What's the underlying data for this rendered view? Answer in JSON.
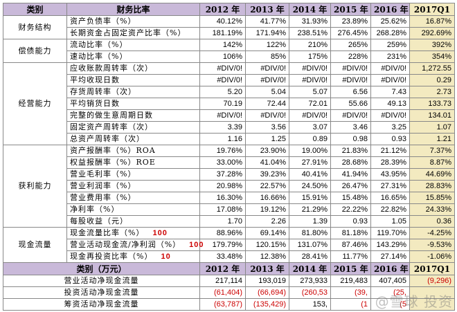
{
  "ratio_table": {
    "headers": [
      "类别",
      "财务比率",
      "2012 年",
      "2013 年",
      "2014 年",
      "2015 年",
      "2016 年",
      "2017Q1"
    ],
    "groups": [
      {
        "category": "财务结构",
        "rows": [
          {
            "name": "资产负债率（%）",
            "mark": "",
            "values": [
              "40.12%",
              "41.77%",
              "31.93%",
              "23.89%",
              "25.62%",
              "16.87%"
            ]
          },
          {
            "name": "长期资金占固定资产比率（%）",
            "mark": "",
            "values": [
              "181.19%",
              "171.94%",
              "238.51%",
              "276.45%",
              "268.28%",
              "292.69%"
            ]
          }
        ]
      },
      {
        "category": "偿债能力",
        "rows": [
          {
            "name": "流动比率（%）",
            "mark": "",
            "values": [
              "142%",
              "122%",
              "210%",
              "265%",
              "259%",
              "392%"
            ]
          },
          {
            "name": "速动比率（%）",
            "mark": "",
            "values": [
              "106%",
              "85%",
              "175%",
              "228%",
              "231%",
              "354%"
            ]
          }
        ]
      },
      {
        "category": "经营能力",
        "rows": [
          {
            "name": "应收账款周转率（次）",
            "mark": "",
            "values": [
              "#DIV/0!",
              "#DIV/0!",
              "#DIV/0!",
              "#DIV/0!",
              "#DIV/0!",
              "1,272.55"
            ]
          },
          {
            "name": "平均收现日数",
            "mark": "",
            "values": [
              "#DIV/0!",
              "#DIV/0!",
              "#DIV/0!",
              "#DIV/0!",
              "#DIV/0!",
              "0.29"
            ]
          },
          {
            "name": "存货周转率（次）",
            "mark": "",
            "values": [
              "5.20",
              "5.04",
              "5.07",
              "6.56",
              "7.43",
              "2.73"
            ]
          },
          {
            "name": "平均销货日数",
            "mark": "",
            "values": [
              "70.19",
              "72.44",
              "72.01",
              "55.66",
              "49.13",
              "133.73"
            ]
          },
          {
            "name": "完整的做生意周期日数",
            "mark": "",
            "values": [
              "#DIV/0!",
              "#DIV/0!",
              "#DIV/0!",
              "#DIV/0!",
              "#DIV/0!",
              "134.01"
            ]
          },
          {
            "name": "固定资产周转率（次）",
            "mark": "",
            "values": [
              "3.39",
              "3.56",
              "3.07",
              "3.46",
              "3.25",
              "1.07"
            ]
          },
          {
            "name": "总资产周转率（次）",
            "mark": "",
            "values": [
              "1.16",
              "1.25",
              "0.89",
              "0.98",
              "0.93",
              "1.21"
            ]
          }
        ]
      },
      {
        "category": "获利能力",
        "rows": [
          {
            "name": "资产报酬率（%）ROA",
            "mark": "",
            "values": [
              "19.76%",
              "23.90%",
              "19.00%",
              "21.83%",
              "21.12%",
              "7.37%"
            ]
          },
          {
            "name": "权益报酬率（%）ROE",
            "mark": "",
            "values": [
              "33.00%",
              "41.04%",
              "27.91%",
              "28.68%",
              "28.39%",
              "8.87%"
            ]
          },
          {
            "name": "营业毛利率（%）",
            "mark": "",
            "values": [
              "37.28%",
              "39.23%",
              "40.41%",
              "41.94%",
              "43.95%",
              "44.69%"
            ]
          },
          {
            "name": "营业利润率（%）",
            "mark": "",
            "values": [
              "20.98%",
              "22.57%",
              "24.50%",
              "26.47%",
              "27.31%",
              "28.83%"
            ]
          },
          {
            "name": "营业费用率（%）",
            "mark": "",
            "values": [
              "16.30%",
              "16.66%",
              "15.91%",
              "15.48%",
              "16.65%",
              "15.85%"
            ]
          },
          {
            "name": "净利率（%）",
            "mark": "",
            "values": [
              "17.08%",
              "19.12%",
              "21.29%",
              "22.22%",
              "22.82%",
              "24.33%"
            ]
          },
          {
            "name": "每股收益（元）",
            "mark": "",
            "values": [
              "1.70",
              "2.26",
              "1.39",
              "0.93",
              "1.05",
              "0.36"
            ]
          }
        ]
      },
      {
        "category": "现金流量",
        "rows": [
          {
            "name": "现金流量比率（%）",
            "mark": "100",
            "values": [
              "88.96%",
              "69.14%",
              "81.80%",
              "81.18%",
              "119.70%",
              "-4.25%"
            ]
          },
          {
            "name": "营业活动现金流/净利润（%）",
            "mark": "100",
            "values": [
              "179.79%",
              "120.15%",
              "131.07%",
              "87.46%",
              "143.29%",
              "-9.53%"
            ]
          },
          {
            "name": "现金再投资比率（%）",
            "mark": "10",
            "values": [
              "33.48%",
              "12.38%",
              "28.41%",
              "11.77%",
              "27.14%",
              "-1.06%"
            ]
          }
        ]
      }
    ]
  },
  "cash_table": {
    "headers": [
      "类别（万元）",
      "2012 年",
      "2013 年",
      "2014 年",
      "2015 年",
      "2016 年",
      "2017Q1"
    ],
    "rows": [
      {
        "name": "营业活动净现金流量",
        "values": [
          "217,114",
          "193,019",
          "273,933",
          "219,483",
          "407,405",
          "(9,296)"
        ],
        "red": [
          false,
          false,
          false,
          false,
          false,
          true
        ]
      },
      {
        "name": "投资活动净现金流量",
        "values": [
          "(61,404)",
          "(66,694)",
          "(260,53",
          "(39,",
          "(25,",
          ""
        ],
        "red": [
          true,
          true,
          true,
          true,
          true,
          false
        ]
      },
      {
        "name": "筹资活动净现金流量",
        "values": [
          "(63,787)",
          "(135,429)",
          "153,",
          "(1",
          "(5",
          ""
        ],
        "red": [
          true,
          true,
          false,
          true,
          true,
          false
        ]
      }
    ]
  },
  "watermark": "@雪球 投资"
}
